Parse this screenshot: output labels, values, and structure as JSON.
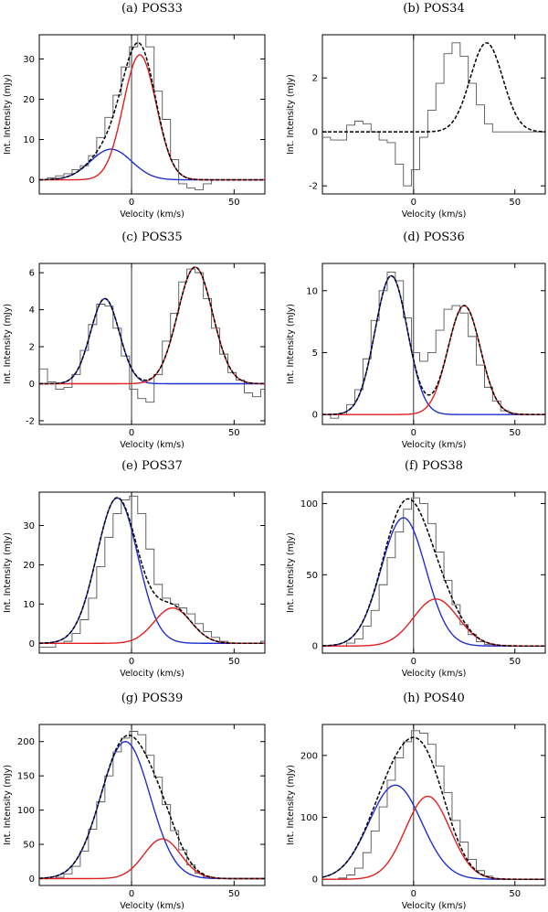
{
  "figure": {
    "x_label": "Velocity (km/s)",
    "y_label": "Int. Intensity (mJy)"
  },
  "colors": {
    "observed": "#555555",
    "total_fit": "#000000",
    "component_1": "#1f2fd0",
    "component_2": "#e02020",
    "zero_line": "#000000"
  },
  "chart_data": [
    {
      "title": "(a) POS33",
      "type": "line",
      "xlim": [
        -45,
        65
      ],
      "ylim": [
        -3.5,
        36
      ],
      "xticks": [
        0,
        50
      ],
      "yticks": [
        0,
        10,
        20,
        30
      ],
      "components": [
        {
          "name": "component 1",
          "color": "blue",
          "amp": 7.6,
          "center": -10,
          "sigma": 10
        },
        {
          "name": "component 2",
          "color": "red",
          "amp": 31,
          "center": 4,
          "sigma": 8
        }
      ],
      "observed": {
        "x_start": -45,
        "step": 4,
        "values": [
          0,
          0.5,
          1,
          1.5,
          2.5,
          3.5,
          6,
          10.5,
          15.5,
          21,
          28,
          33,
          36,
          33,
          22,
          15,
          5,
          -1,
          -2,
          -2.5,
          -1,
          0,
          0,
          0,
          0,
          0,
          0,
          0
        ]
      }
    },
    {
      "title": "(b) POS34",
      "type": "line",
      "xlim": [
        -45,
        65
      ],
      "ylim": [
        -2.3,
        3.6
      ],
      "xticks": [
        0,
        50
      ],
      "yticks": [
        -2,
        0,
        2
      ],
      "components": [
        {
          "name": "component 1",
          "color": "black",
          "amp": 3.3,
          "center": 36,
          "sigma": 8
        }
      ],
      "observed": {
        "x_start": -45,
        "step": 4,
        "values": [
          -0.2,
          -0.3,
          -0.3,
          0.25,
          0.4,
          0.3,
          0,
          -0.3,
          -0.4,
          -1.2,
          -2.0,
          -1.4,
          -0.2,
          0.8,
          1.8,
          2.9,
          3.3,
          2.8,
          1.8,
          1,
          0.3,
          0,
          0,
          0,
          0,
          0,
          0,
          0
        ]
      }
    },
    {
      "title": "(c) POS35",
      "type": "line",
      "xlim": [
        -45,
        65
      ],
      "ylim": [
        -2.2,
        6.5
      ],
      "xticks": [
        0,
        50
      ],
      "yticks": [
        -2,
        0,
        2,
        4,
        6
      ],
      "components": [
        {
          "name": "component 1",
          "color": "blue",
          "amp": 4.6,
          "center": -13,
          "sigma": 7
        },
        {
          "name": "component 2",
          "color": "red",
          "amp": 6.3,
          "center": 31,
          "sigma": 8.5
        }
      ],
      "observed": {
        "x_start": -45,
        "step": 4,
        "values": [
          0.8,
          0.1,
          -0.3,
          -0.2,
          0.5,
          1.8,
          3.2,
          4.3,
          4.2,
          3.0,
          1.5,
          -0.3,
          -0.8,
          -1.0,
          0.5,
          2.3,
          3.8,
          5.5,
          6.2,
          6.0,
          4.6,
          3.0,
          1.6,
          0.6,
          0.2,
          -0.5,
          -0.7,
          -0.3
        ]
      }
    },
    {
      "title": "(d) POS36",
      "type": "line",
      "xlim": [
        -45,
        65
      ],
      "ylim": [
        -0.8,
        12.2
      ],
      "xticks": [
        0,
        50
      ],
      "yticks": [
        0,
        5,
        10
      ],
      "components": [
        {
          "name": "component 1",
          "color": "blue",
          "amp": 11.2,
          "center": -11,
          "sigma": 8
        },
        {
          "name": "component 2",
          "color": "red",
          "amp": 8.8,
          "center": 25,
          "sigma": 8
        }
      ],
      "observed": {
        "x_start": -45,
        "step": 4,
        "values": [
          0,
          -0.3,
          0,
          0.8,
          2.0,
          4.5,
          7.6,
          10,
          11.5,
          10.8,
          7.8,
          5,
          4.3,
          5,
          6.8,
          8.5,
          8.8,
          8.2,
          6.3,
          4,
          2.2,
          1.1,
          0.3,
          0,
          0,
          0,
          0,
          0
        ]
      }
    },
    {
      "title": "(e) POS37",
      "type": "line",
      "xlim": [
        -45,
        65
      ],
      "ylim": [
        -2.5,
        38.5
      ],
      "xticks": [
        0,
        50
      ],
      "yticks": [
        0,
        10,
        20,
        30
      ],
      "components": [
        {
          "name": "component 1",
          "color": "blue",
          "amp": 37,
          "center": -7,
          "sigma": 10
        },
        {
          "name": "component 2",
          "color": "red",
          "amp": 9,
          "center": 20,
          "sigma": 9
        }
      ],
      "observed": {
        "x_start": -45,
        "step": 4,
        "values": [
          -1,
          -1,
          0,
          0.5,
          2.5,
          6,
          11.5,
          19.5,
          27,
          33,
          36.5,
          37.5,
          33,
          24,
          15,
          11.5,
          10,
          9,
          7.5,
          5,
          3,
          1.5,
          0.5,
          0,
          0,
          0,
          0,
          0.5
        ]
      }
    },
    {
      "title": "(f) POS38",
      "type": "line",
      "xlim": [
        -45,
        65
      ],
      "ylim": [
        -5,
        108
      ],
      "xticks": [
        0,
        50
      ],
      "yticks": [
        0,
        50,
        100
      ],
      "components": [
        {
          "name": "component 1",
          "color": "blue",
          "amp": 90,
          "center": -5,
          "sigma": 11
        },
        {
          "name": "component 2",
          "color": "red",
          "amp": 33,
          "center": 11,
          "sigma": 11
        }
      ],
      "observed": {
        "x_start": -45,
        "step": 4,
        "values": [
          0,
          0,
          0,
          2,
          5,
          14,
          25,
          43,
          62,
          80,
          96,
          104,
          100,
          86,
          66,
          46,
          29,
          15,
          8,
          3,
          1,
          0,
          0,
          0,
          0,
          0,
          0,
          0
        ]
      }
    },
    {
      "title": "(g) POS39",
      "type": "line",
      "xlim": [
        -45,
        65
      ],
      "ylim": [
        -10,
        225
      ],
      "xticks": [
        0,
        50
      ],
      "yticks": [
        0,
        50,
        100,
        150,
        200
      ],
      "components": [
        {
          "name": "component 1",
          "color": "blue",
          "amp": 200,
          "center": -3,
          "sigma": 12
        },
        {
          "name": "component 2",
          "color": "red",
          "amp": 58,
          "center": 15,
          "sigma": 9
        }
      ],
      "observed": {
        "x_start": -45,
        "step": 4,
        "values": [
          0,
          0,
          2,
          7,
          18,
          40,
          72,
          112,
          150,
          185,
          205,
          215,
          210,
          180,
          148,
          108,
          70,
          42,
          20,
          8,
          3,
          0,
          0,
          0,
          0,
          0,
          0,
          0
        ]
      }
    },
    {
      "title": "(h) POS40",
      "type": "line",
      "xlim": [
        -45,
        65
      ],
      "ylim": [
        -10,
        250
      ],
      "xticks": [
        0,
        50
      ],
      "yticks": [
        0,
        100,
        200
      ],
      "components": [
        {
          "name": "component 1",
          "color": "blue",
          "amp": 152,
          "center": -9,
          "sigma": 13
        },
        {
          "name": "component 2",
          "color": "red",
          "amp": 134,
          "center": 7,
          "sigma": 11
        }
      ],
      "observed": {
        "x_start": -45,
        "step": 4,
        "values": [
          0,
          0,
          2,
          7,
          18,
          43,
          78,
          117,
          160,
          196,
          222,
          240,
          236,
          218,
          183,
          140,
          95,
          60,
          32,
          14,
          5,
          0,
          0,
          0,
          0,
          0,
          0,
          0
        ]
      }
    }
  ]
}
